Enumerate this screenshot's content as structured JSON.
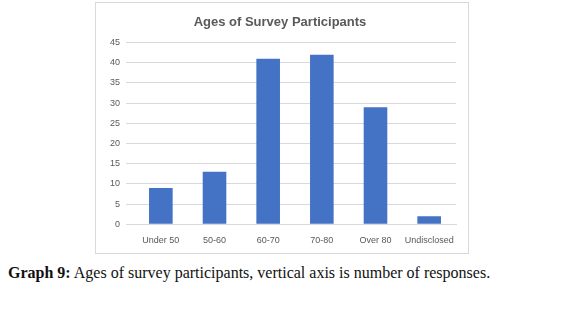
{
  "chart_data": {
    "type": "bar",
    "title": "Ages of Survey Participants",
    "categories": [
      "Under 50",
      "50-60",
      "60-70",
      "70-80",
      "Over 80",
      "Undisclosed"
    ],
    "values": [
      9,
      13,
      41,
      42,
      29,
      2
    ],
    "color": "#4472c4",
    "ylim": [
      0,
      45
    ],
    "yticks": [
      0,
      5,
      10,
      15,
      20,
      25,
      30,
      35,
      40,
      45
    ],
    "grid": true
  },
  "caption": {
    "label": "Graph 9:",
    "text": "Ages of survey participants, vertical axis is number of responses."
  }
}
